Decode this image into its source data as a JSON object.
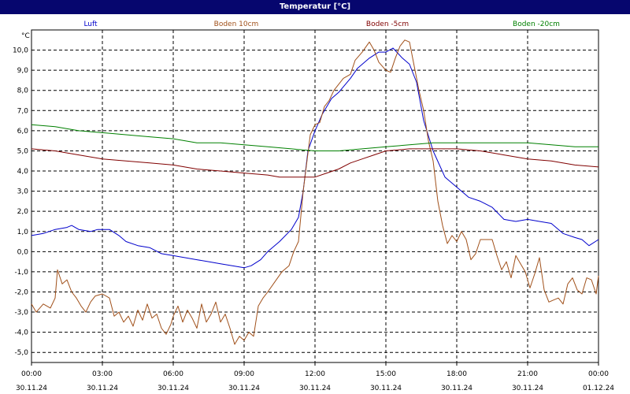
{
  "window": {
    "title": "Temperatur [°C]"
  },
  "chart_data": {
    "type": "line",
    "ylabel": "°C",
    "ylim": [
      -5.5,
      11.0
    ],
    "y_ticks": [
      "-5,0",
      "-4,0",
      "-3,0",
      "-2,0",
      "-1,0",
      "0,0",
      "1,0",
      "2,0",
      "3,0",
      "4,0",
      "5,0",
      "6,0",
      "7,0",
      "8,0",
      "9,0",
      "10,0"
    ],
    "y_tick_values": [
      -5,
      -4,
      -3,
      -2,
      -1,
      0,
      1,
      2,
      3,
      4,
      5,
      6,
      7,
      8,
      9,
      10
    ],
    "xlim": [
      0,
      24
    ],
    "x_ticks": [
      {
        "time": "00:00",
        "date": "30.11.24",
        "h": 0
      },
      {
        "time": "03:00",
        "date": "30.11.24",
        "h": 3
      },
      {
        "time": "06:00",
        "date": "30.11.24",
        "h": 6
      },
      {
        "time": "09:00",
        "date": "30.11.24",
        "h": 9
      },
      {
        "time": "12:00",
        "date": "30.11.24",
        "h": 12
      },
      {
        "time": "15:00",
        "date": "30.11.24",
        "h": 15
      },
      {
        "time": "18:00",
        "date": "30.11.24",
        "h": 18
      },
      {
        "time": "21:00",
        "date": "30.11.24",
        "h": 21
      },
      {
        "time": "00:00",
        "date": "01.12.24",
        "h": 24
      }
    ],
    "grid": true,
    "legend_position": "top",
    "series": [
      {
        "name": "Luft",
        "color": "#0000cc",
        "points": [
          [
            0,
            0.8
          ],
          [
            0.5,
            0.9
          ],
          [
            1,
            1.1
          ],
          [
            1.5,
            1.2
          ],
          [
            1.7,
            1.3
          ],
          [
            2,
            1.1
          ],
          [
            2.5,
            1.0
          ],
          [
            2.8,
            1.1
          ],
          [
            3.3,
            1.1
          ],
          [
            3.7,
            0.8
          ],
          [
            4,
            0.5
          ],
          [
            4.5,
            0.3
          ],
          [
            5,
            0.2
          ],
          [
            5.5,
            -0.1
          ],
          [
            6,
            -0.2
          ],
          [
            6.5,
            -0.3
          ],
          [
            7,
            -0.4
          ],
          [
            7.5,
            -0.5
          ],
          [
            8,
            -0.6
          ],
          [
            8.5,
            -0.7
          ],
          [
            9,
            -0.8
          ],
          [
            9.3,
            -0.7
          ],
          [
            9.7,
            -0.4
          ],
          [
            10,
            0.0
          ],
          [
            10.5,
            0.5
          ],
          [
            11,
            1.1
          ],
          [
            11.3,
            1.7
          ],
          [
            11.5,
            3.0
          ],
          [
            11.7,
            5.0
          ],
          [
            12,
            6.0
          ],
          [
            12.3,
            6.8
          ],
          [
            12.7,
            7.6
          ],
          [
            13,
            7.9
          ],
          [
            13.5,
            8.6
          ],
          [
            13.8,
            9.1
          ],
          [
            14,
            9.3
          ],
          [
            14.3,
            9.6
          ],
          [
            14.7,
            9.9
          ],
          [
            15,
            9.9
          ],
          [
            15.3,
            10.1
          ],
          [
            15.7,
            9.6
          ],
          [
            16,
            9.3
          ],
          [
            16.3,
            8.4
          ],
          [
            16.6,
            6.5
          ],
          [
            17,
            5.0
          ],
          [
            17.5,
            3.7
          ],
          [
            18,
            3.2
          ],
          [
            18.5,
            2.7
          ],
          [
            19,
            2.5
          ],
          [
            19.5,
            2.2
          ],
          [
            20,
            1.6
          ],
          [
            20.5,
            1.5
          ],
          [
            21,
            1.6
          ],
          [
            21.5,
            1.5
          ],
          [
            22,
            1.4
          ],
          [
            22.5,
            0.9
          ],
          [
            23,
            0.7
          ],
          [
            23.3,
            0.6
          ],
          [
            23.6,
            0.3
          ],
          [
            24,
            0.6
          ]
        ]
      },
      {
        "name": "Boden 10cm",
        "color": "#a0501a",
        "points": [
          [
            0,
            -2.6
          ],
          [
            0.2,
            -3.0
          ],
          [
            0.5,
            -2.6
          ],
          [
            0.8,
            -2.8
          ],
          [
            1,
            -2.3
          ],
          [
            1.1,
            -0.9
          ],
          [
            1.3,
            -1.6
          ],
          [
            1.5,
            -1.4
          ],
          [
            1.7,
            -2.0
          ],
          [
            1.9,
            -2.3
          ],
          [
            2.1,
            -2.7
          ],
          [
            2.3,
            -3.0
          ],
          [
            2.5,
            -2.5
          ],
          [
            2.7,
            -2.2
          ],
          [
            3,
            -2.1
          ],
          [
            3.3,
            -2.3
          ],
          [
            3.5,
            -3.2
          ],
          [
            3.7,
            -3.0
          ],
          [
            3.9,
            -3.5
          ],
          [
            4.1,
            -3.2
          ],
          [
            4.3,
            -3.7
          ],
          [
            4.5,
            -2.9
          ],
          [
            4.7,
            -3.4
          ],
          [
            4.9,
            -2.6
          ],
          [
            5.1,
            -3.3
          ],
          [
            5.3,
            -3.1
          ],
          [
            5.5,
            -3.8
          ],
          [
            5.7,
            -4.1
          ],
          [
            5.9,
            -3.6
          ],
          [
            6,
            -3.2
          ],
          [
            6.2,
            -2.7
          ],
          [
            6.4,
            -3.5
          ],
          [
            6.6,
            -2.9
          ],
          [
            6.8,
            -3.3
          ],
          [
            7,
            -3.8
          ],
          [
            7.2,
            -2.6
          ],
          [
            7.4,
            -3.5
          ],
          [
            7.6,
            -3.1
          ],
          [
            7.8,
            -2.5
          ],
          [
            8,
            -3.5
          ],
          [
            8.2,
            -3.1
          ],
          [
            8.4,
            -3.8
          ],
          [
            8.6,
            -4.6
          ],
          [
            8.8,
            -4.2
          ],
          [
            9,
            -4.4
          ],
          [
            9.2,
            -4.0
          ],
          [
            9.4,
            -4.2
          ],
          [
            9.6,
            -2.7
          ],
          [
            9.8,
            -2.3
          ],
          [
            10,
            -2.0
          ],
          [
            10.3,
            -1.5
          ],
          [
            10.6,
            -1.0
          ],
          [
            10.9,
            -0.7
          ],
          [
            11.1,
            0.0
          ],
          [
            11.3,
            0.5
          ],
          [
            11.5,
            3.0
          ],
          [
            11.8,
            5.8
          ],
          [
            12,
            6.3
          ],
          [
            12.2,
            6.4
          ],
          [
            12.4,
            7.2
          ],
          [
            12.6,
            7.5
          ],
          [
            12.8,
            8.0
          ],
          [
            13,
            8.3
          ],
          [
            13.2,
            8.6
          ],
          [
            13.5,
            8.8
          ],
          [
            13.7,
            9.5
          ],
          [
            14,
            9.9
          ],
          [
            14.3,
            10.4
          ],
          [
            14.5,
            10.0
          ],
          [
            14.7,
            9.4
          ],
          [
            15,
            9.0
          ],
          [
            15.2,
            8.9
          ],
          [
            15.4,
            9.6
          ],
          [
            15.6,
            10.2
          ],
          [
            15.8,
            10.5
          ],
          [
            16,
            10.4
          ],
          [
            16.2,
            9.2
          ],
          [
            16.4,
            8.0
          ],
          [
            16.6,
            7.0
          ],
          [
            16.8,
            5.5
          ],
          [
            17,
            4.5
          ],
          [
            17.2,
            2.5
          ],
          [
            17.4,
            1.3
          ],
          [
            17.6,
            0.4
          ],
          [
            17.8,
            0.8
          ],
          [
            18,
            0.5
          ],
          [
            18.2,
            1.0
          ],
          [
            18.4,
            0.6
          ],
          [
            18.6,
            -0.4
          ],
          [
            18.8,
            -0.1
          ],
          [
            19,
            0.6
          ],
          [
            19.5,
            0.6
          ],
          [
            19.7,
            -0.2
          ],
          [
            19.9,
            -0.9
          ],
          [
            20.1,
            -0.5
          ],
          [
            20.3,
            -1.3
          ],
          [
            20.5,
            -0.2
          ],
          [
            20.7,
            -0.6
          ],
          [
            20.9,
            -1.0
          ],
          [
            21.1,
            -1.8
          ],
          [
            21.3,
            -1.1
          ],
          [
            21.5,
            -0.3
          ],
          [
            21.7,
            -1.9
          ],
          [
            21.9,
            -2.5
          ],
          [
            22.1,
            -2.4
          ],
          [
            22.3,
            -2.3
          ],
          [
            22.5,
            -2.6
          ],
          [
            22.7,
            -1.6
          ],
          [
            22.9,
            -1.3
          ],
          [
            23.1,
            -1.9
          ],
          [
            23.3,
            -2.1
          ],
          [
            23.5,
            -1.3
          ],
          [
            23.7,
            -1.4
          ],
          [
            23.9,
            -2.1
          ],
          [
            24,
            -1.2
          ]
        ]
      },
      {
        "name": "Boden -5cm",
        "color": "#800000",
        "points": [
          [
            0,
            5.1
          ],
          [
            1,
            5.0
          ],
          [
            2,
            4.8
          ],
          [
            3,
            4.6
          ],
          [
            4,
            4.5
          ],
          [
            5,
            4.4
          ],
          [
            6,
            4.3
          ],
          [
            7,
            4.1
          ],
          [
            8,
            4.0
          ],
          [
            9,
            3.9
          ],
          [
            10,
            3.8
          ],
          [
            10.5,
            3.7
          ],
          [
            11,
            3.7
          ],
          [
            12,
            3.7
          ],
          [
            12.5,
            3.9
          ],
          [
            13,
            4.1
          ],
          [
            13.5,
            4.4
          ],
          [
            14,
            4.6
          ],
          [
            14.5,
            4.8
          ],
          [
            15,
            5.0
          ],
          [
            16,
            5.1
          ],
          [
            17,
            5.1
          ],
          [
            18,
            5.1
          ],
          [
            19,
            5.0
          ],
          [
            20,
            4.8
          ],
          [
            21,
            4.6
          ],
          [
            22,
            4.5
          ],
          [
            23,
            4.3
          ],
          [
            24,
            4.2
          ]
        ]
      },
      {
        "name": "Boden -20cm",
        "color": "#008000",
        "points": [
          [
            0,
            6.3
          ],
          [
            1,
            6.2
          ],
          [
            2,
            6.0
          ],
          [
            3,
            5.9
          ],
          [
            4,
            5.8
          ],
          [
            5,
            5.7
          ],
          [
            6,
            5.6
          ],
          [
            7,
            5.4
          ],
          [
            8,
            5.4
          ],
          [
            9,
            5.3
          ],
          [
            10,
            5.2
          ],
          [
            11,
            5.1
          ],
          [
            12,
            5.0
          ],
          [
            13,
            5.0
          ],
          [
            14,
            5.1
          ],
          [
            15,
            5.2
          ],
          [
            16,
            5.3
          ],
          [
            17,
            5.4
          ],
          [
            18,
            5.4
          ],
          [
            19,
            5.4
          ],
          [
            20,
            5.4
          ],
          [
            21,
            5.4
          ],
          [
            22,
            5.3
          ],
          [
            23,
            5.2
          ],
          [
            24,
            5.2
          ]
        ]
      }
    ]
  }
}
